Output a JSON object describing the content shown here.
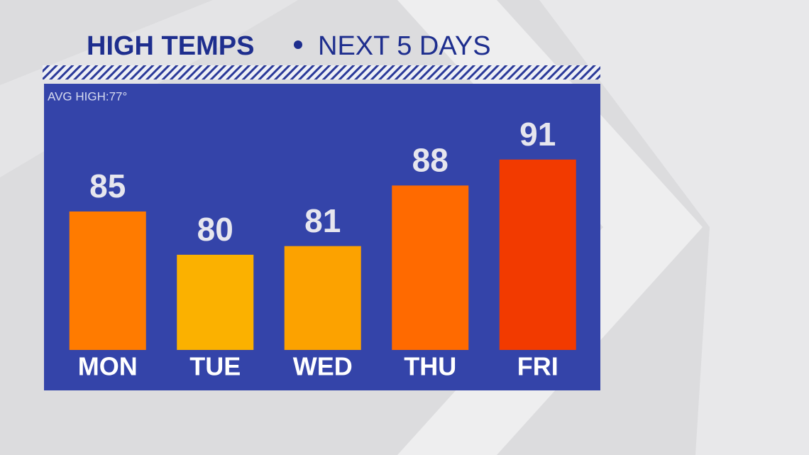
{
  "chart_data": {
    "type": "bar",
    "title": "HIGH TEMPS",
    "subtitle": "NEXT 5 DAYS",
    "annotation": "AVG HIGH:77°",
    "categories": [
      "MON",
      "TUE",
      "WED",
      "THU",
      "FRI"
    ],
    "values": [
      85,
      80,
      81,
      88,
      91
    ],
    "colors": [
      "#ff7b00",
      "#fbb100",
      "#fca200",
      "#ff6a00",
      "#f23a00"
    ],
    "ylim": [
      69,
      95
    ]
  }
}
